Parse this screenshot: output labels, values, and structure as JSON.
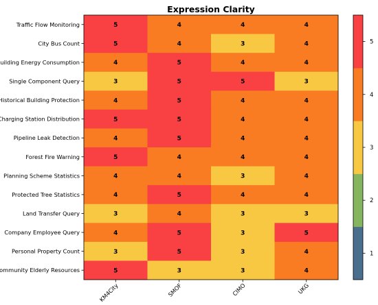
{
  "chart_data": {
    "type": "heatmap",
    "title": "Expression Clarity",
    "rows": [
      "Traffic Flow Monitoring",
      "City Bus Count",
      "Building Energy Consumption",
      "Single Component Query",
      "Historical Building Protection",
      "Charging Station Distribution",
      "Pipeline Leak Detection",
      "Forest Fire Warning",
      "Planning Scheme Statistics",
      "Protected Tree Statistics",
      "Land Transfer Query",
      "Company Employee Query",
      "Personal Property Count",
      "Community Elderly Resources"
    ],
    "columns": [
      "KM4City",
      "SMOF",
      "CIMO",
      "UKG"
    ],
    "values": [
      [
        5,
        4,
        4,
        4
      ],
      [
        5,
        4,
        3,
        4
      ],
      [
        4,
        5,
        4,
        4
      ],
      [
        3,
        5,
        5,
        3
      ],
      [
        4,
        5,
        4,
        4
      ],
      [
        5,
        5,
        4,
        4
      ],
      [
        4,
        5,
        4,
        4
      ],
      [
        5,
        4,
        4,
        4
      ],
      [
        4,
        4,
        3,
        4
      ],
      [
        4,
        5,
        4,
        4
      ],
      [
        3,
        4,
        3,
        3
      ],
      [
        4,
        5,
        3,
        5
      ],
      [
        3,
        5,
        3,
        4
      ],
      [
        5,
        3,
        3,
        4
      ]
    ],
    "colorbar": {
      "ticks": [
        1,
        2,
        3,
        4,
        5
      ],
      "range": [
        0.5,
        5.5
      ],
      "colors": {
        "1": "#4a6e8e",
        "2": "#86b560",
        "3": "#f8c843",
        "4": "#f97b22",
        "5": "#f94144"
      }
    }
  }
}
